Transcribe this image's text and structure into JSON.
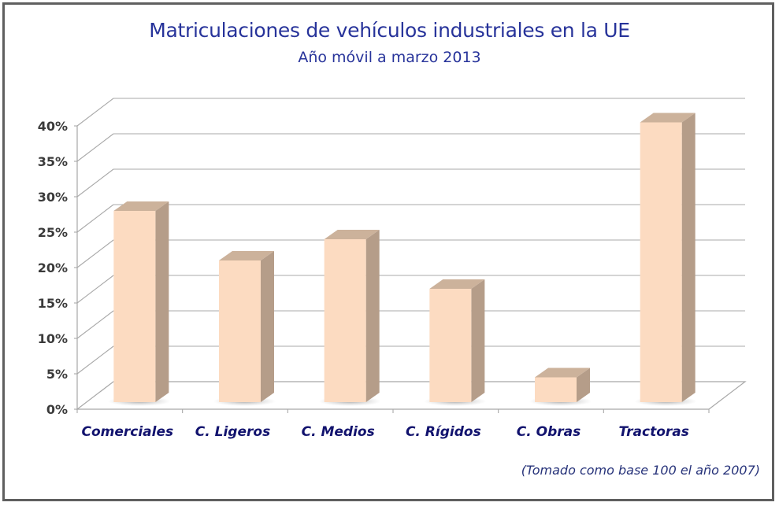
{
  "chart_data": {
    "type": "bar",
    "style": "3d-column",
    "title": "Matriculaciones de vehículos industriales en la UE",
    "subtitle": "Año móvil a marzo 2013",
    "note": "(Tomado como base 100 el año 2007)",
    "xlabel": "",
    "ylabel": "",
    "categories": [
      "Comerciales",
      "C. Ligeros",
      "C. Medios",
      "C. Rígidos",
      "C. Obras",
      "Tractoras"
    ],
    "values": [
      27,
      20,
      23,
      16,
      3.5,
      39.5
    ],
    "value_unit": "%",
    "ylim": [
      0,
      40
    ],
    "yticks": [
      0,
      5,
      10,
      15,
      20,
      25,
      30,
      35,
      40
    ],
    "ytick_labels": [
      "0%",
      "5%",
      "10%",
      "15%",
      "20%",
      "25%",
      "30%",
      "35%",
      "40%"
    ],
    "grid": true,
    "legend": "none",
    "colors": {
      "bar_front": "#fcdbc1",
      "bar_top": "#ccb29b",
      "bar_side": "#b59d89",
      "title": "#27339a",
      "category_label": "#12136e",
      "grid": "#a8a8a8"
    }
  }
}
